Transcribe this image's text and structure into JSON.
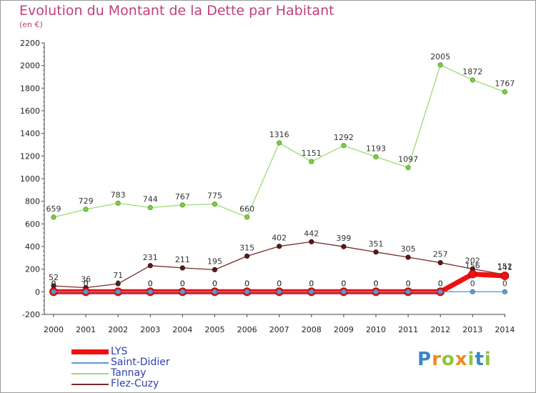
{
  "title": "Evolution du Montant de la Dette par Habitant",
  "subtitle": "(en €)",
  "brand": {
    "text": "Proxiti",
    "colors": [
      "#3a86c8",
      "#f08a1c",
      "#8cc63f",
      "#f08a1c",
      "#8cc63f",
      "#3a86c8",
      "#8cc63f"
    ]
  },
  "chart_data": {
    "type": "line",
    "title": "Evolution du Montant de la Dette par Habitant",
    "subtitle": "(en €)",
    "xlabel": "",
    "ylabel": "",
    "x": [
      "2000",
      "2001",
      "2002",
      "2003",
      "2004",
      "2005",
      "2006",
      "2007",
      "2008",
      "2009",
      "2010",
      "2011",
      "2012",
      "2013",
      "2014"
    ],
    "ylim": [
      -200,
      2200
    ],
    "yticks": [
      -200,
      0,
      200,
      400,
      600,
      800,
      1000,
      1200,
      1400,
      1600,
      1800,
      2000,
      2200
    ],
    "ytick_labels": [
      "-200",
      "0",
      "200",
      "400",
      "600",
      "800",
      "1000",
      "1200",
      "1400",
      "1600",
      "1800",
      "2000",
      "2200"
    ],
    "grid": false,
    "legend_position": "bottom-left",
    "series": [
      {
        "name": "LYS",
        "color": "#ee1111",
        "values": [
          0,
          0,
          0,
          0,
          0,
          0,
          0,
          0,
          0,
          0,
          0,
          0,
          0,
          156,
          141
        ],
        "labels": [
          "0",
          "0",
          "0",
          "0",
          "0",
          "0",
          "0",
          "0",
          "0",
          "0",
          "0",
          "0",
          "0",
          "156",
          "141"
        ]
      },
      {
        "name": "Saint-Didier",
        "color": "#5b9bd5",
        "values": [
          0,
          0,
          0,
          0,
          0,
          0,
          0,
          0,
          0,
          0,
          0,
          0,
          0,
          0,
          0
        ],
        "labels": [
          "0",
          "0",
          "0",
          "0",
          "0",
          "0",
          "0",
          "0",
          "0",
          "0",
          "0",
          "0",
          "0",
          "0",
          "0"
        ]
      },
      {
        "name": "Tannay",
        "color": "#99dd77",
        "values": [
          659,
          729,
          783,
          744,
          767,
          775,
          660,
          1316,
          1151,
          1292,
          1193,
          1097,
          2005,
          1872,
          1767
        ],
        "labels": [
          "659",
          "729",
          "783",
          "744",
          "767",
          "775",
          "660",
          "1316",
          "1151",
          "1292",
          "1193",
          "1097",
          "2005",
          "1872",
          "1767"
        ]
      },
      {
        "name": "Flez-Cuzy",
        "color": "#7a2a2a",
        "values": [
          52,
          36,
          71,
          231,
          211,
          195,
          315,
          402,
          442,
          399,
          351,
          305,
          257,
          202,
          152
        ],
        "labels": [
          "52",
          "36",
          "71",
          "231",
          "211",
          "195",
          "315",
          "402",
          "442",
          "399",
          "351",
          "305",
          "257",
          "202",
          "152"
        ]
      }
    ]
  }
}
